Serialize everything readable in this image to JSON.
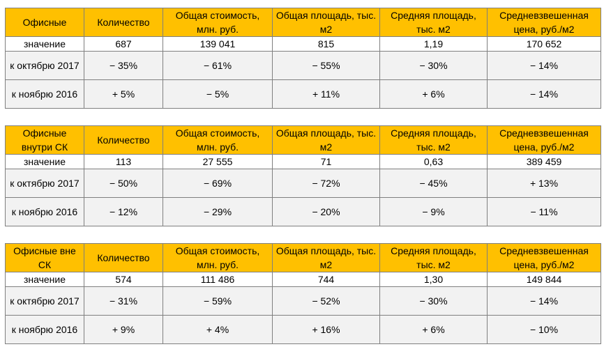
{
  "tables": [
    {
      "header": [
        "Офисные",
        "Количество",
        "Общая стоимость, млн. руб.",
        "Общая площадь, тыс. м2",
        "Средняя площадь, тыс. м2",
        "Средневзвешенная цена, руб./м2"
      ],
      "rows": [
        [
          "значение",
          "687",
          "139 041",
          "815",
          "1,19",
          "170 652"
        ],
        [
          "к октябрю 2017",
          "− 35%",
          "− 61%",
          "− 55%",
          "− 30%",
          "− 14%"
        ],
        [
          "к ноябрю 2016",
          "+ 5%",
          "− 5%",
          "+ 11%",
          "+ 6%",
          "− 14%"
        ]
      ]
    },
    {
      "header": [
        "Офисные внутри СК",
        "Количество",
        "Общая стоимость, млн. руб.",
        "Общая площадь, тыс. м2",
        "Средняя площадь, тыс. м2",
        "Средневзвешенная цена, руб./м2"
      ],
      "rows": [
        [
          "значение",
          "113",
          "27 555",
          "71",
          "0,63",
          "389 459"
        ],
        [
          "к октябрю 2017",
          "− 50%",
          "− 69%",
          "− 72%",
          "− 45%",
          "+ 13%"
        ],
        [
          "к ноябрю 2016",
          "− 12%",
          "− 29%",
          "− 20%",
          "− 9%",
          "− 11%"
        ]
      ]
    },
    {
      "header": [
        "Офисные вне СК",
        "Количество",
        "Общая стоимость, млн. руб.",
        "Общая площадь, тыс. м2",
        "Средняя площадь, тыс. м2",
        "Средневзвешенная цена, руб./м2"
      ],
      "rows": [
        [
          "значение",
          "574",
          "111 486",
          "744",
          "1,30",
          "149 844"
        ],
        [
          "к октябрю 2017",
          "− 31%",
          "− 59%",
          "− 52%",
          "− 30%",
          "− 14%"
        ],
        [
          "к ноябрю 2016",
          "+ 9%",
          "+ 4%",
          "+ 16%",
          "+ 6%",
          "− 10%"
        ]
      ]
    }
  ],
  "colors": {
    "header_bg": "#ffc000",
    "shaded_row_bg": "#f2f2f2",
    "border": "#7f7f7f"
  }
}
